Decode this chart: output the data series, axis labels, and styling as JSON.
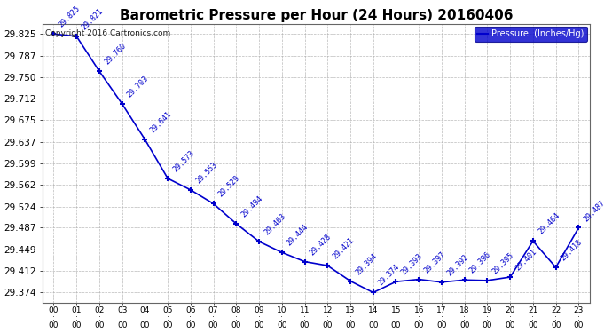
{
  "title": "Barometric Pressure per Hour (24 Hours) 20160406",
  "legend_label": "Pressure  (Inches/Hg)",
  "copyright": "Copyright 2016 Cartronics.com",
  "hours": [
    0,
    1,
    2,
    3,
    4,
    5,
    6,
    7,
    8,
    9,
    10,
    11,
    12,
    13,
    14,
    15,
    16,
    17,
    18,
    19,
    20,
    21,
    22,
    23
  ],
  "hour_labels": [
    "00:00",
    "01:00",
    "02:00",
    "03:00",
    "04:00",
    "05:00",
    "06:00",
    "07:00",
    "08:00",
    "09:00",
    "10:00",
    "11:00",
    "12:00",
    "13:00",
    "14:00",
    "15:00",
    "16:00",
    "17:00",
    "18:00",
    "19:00",
    "20:00",
    "21:00",
    "22:00",
    "23:00"
  ],
  "pressure": [
    29.825,
    29.821,
    29.76,
    29.703,
    29.641,
    29.573,
    29.553,
    29.529,
    29.494,
    29.463,
    29.444,
    29.428,
    29.421,
    29.394,
    29.374,
    29.393,
    29.397,
    29.392,
    29.396,
    29.395,
    29.401,
    29.464,
    29.418,
    29.487
  ],
  "ylim_min": 29.356,
  "ylim_max": 29.843,
  "yticks": [
    29.374,
    29.412,
    29.449,
    29.487,
    29.524,
    29.562,
    29.599,
    29.637,
    29.675,
    29.712,
    29.75,
    29.787,
    29.825
  ],
  "line_color": "#0000cc",
  "marker_color": "#0000cc",
  "label_color": "#0000cc",
  "grid_color": "#aaaaaa",
  "bg_color": "#ffffff",
  "title_color": "#000000",
  "legend_bg": "#0000cc",
  "legend_text": "#ffffff",
  "title_fontsize": 11,
  "tick_fontsize": 7.5,
  "label_fontsize": 6.0,
  "copyright_fontsize": 6.5
}
